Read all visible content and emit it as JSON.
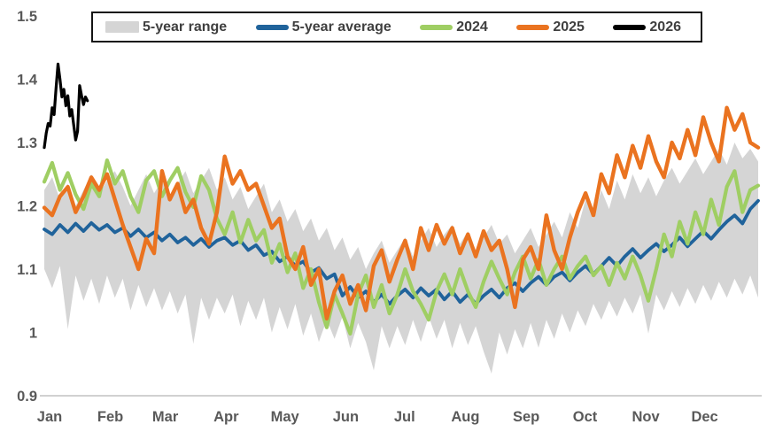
{
  "chart_data": {
    "type": "line",
    "title": "",
    "xlabel": "",
    "ylabel": "",
    "grid": false,
    "legend_position": "top",
    "y_axis": {
      "range": [
        0.9,
        1.5
      ],
      "tick_labels": [
        "1.5",
        "1.4",
        "1.3",
        "1.2",
        "1.1",
        "1",
        "0.9"
      ],
      "tick_values": [
        1.5,
        1.4,
        1.3,
        1.2,
        1.1,
        1.0,
        0.9
      ]
    },
    "x_axis": {
      "tick_labels": [
        "Jan",
        "Feb",
        "Mar",
        "Apr",
        "May",
        "Jun",
        "Jul",
        "Aug",
        "Sep",
        "Oct",
        "Nov",
        "Dec"
      ],
      "tick_days": [
        1,
        32,
        60,
        91,
        121,
        152,
        182,
        213,
        244,
        274,
        305,
        335
      ],
      "domain_days": [
        1,
        365
      ]
    },
    "legend": {
      "items": [
        {
          "label": "5-year range",
          "color": "#D5D5D5",
          "swatch": "area"
        },
        {
          "label": "5-year average",
          "color": "#20639B",
          "swatch": "line"
        },
        {
          "label": "2024",
          "color": "#9FCE63",
          "swatch": "line"
        },
        {
          "label": "2025",
          "color": "#EA7320",
          "swatch": "line"
        },
        {
          "label": "2026",
          "color": "#000000",
          "swatch": "line"
        }
      ]
    },
    "days": [
      1,
      5,
      9,
      13,
      17,
      21,
      25,
      29,
      33,
      37,
      41,
      45,
      49,
      53,
      57,
      61,
      65,
      69,
      73,
      77,
      81,
      85,
      89,
      93,
      97,
      101,
      105,
      109,
      113,
      117,
      121,
      125,
      129,
      133,
      137,
      141,
      145,
      149,
      153,
      157,
      161,
      165,
      169,
      173,
      177,
      181,
      185,
      189,
      193,
      197,
      201,
      205,
      209,
      213,
      217,
      221,
      225,
      229,
      233,
      237,
      241,
      245,
      249,
      253,
      257,
      261,
      265,
      269,
      273,
      277,
      281,
      285,
      289,
      293,
      297,
      301,
      305,
      309,
      313,
      317,
      321,
      325,
      329,
      333,
      337,
      341,
      345,
      349,
      353,
      357,
      361,
      365
    ],
    "series": [
      {
        "name": "5-year range",
        "kind": "band",
        "color": "#D5D5D5",
        "high": [
          1.225,
          1.245,
          1.21,
          1.235,
          1.2,
          1.225,
          1.25,
          1.22,
          1.24,
          1.255,
          1.23,
          1.2,
          1.225,
          1.25,
          1.22,
          1.24,
          1.21,
          1.235,
          1.255,
          1.22,
          1.24,
          1.26,
          1.225,
          1.245,
          1.21,
          1.23,
          1.195,
          1.215,
          1.235,
          1.19,
          1.21,
          1.175,
          1.195,
          1.16,
          1.18,
          1.145,
          1.165,
          1.13,
          1.15,
          1.115,
          1.135,
          1.1,
          1.125,
          1.145,
          1.11,
          1.13,
          1.15,
          1.12,
          1.145,
          1.165,
          1.135,
          1.155,
          1.17,
          1.14,
          1.16,
          1.13,
          1.15,
          1.17,
          1.14,
          1.155,
          1.125,
          1.145,
          1.165,
          1.135,
          1.155,
          1.175,
          1.15,
          1.19,
          1.165,
          1.21,
          1.18,
          1.225,
          1.195,
          1.24,
          1.21,
          1.25,
          1.22,
          1.245,
          1.215,
          1.24,
          1.26,
          1.235,
          1.255,
          1.275,
          1.25,
          1.27,
          1.29,
          1.265,
          1.3,
          1.275,
          1.29,
          1.27
        ],
        "low": [
          1.1,
          1.07,
          1.105,
          1.005,
          1.09,
          1.05,
          1.085,
          1.045,
          1.09,
          1.055,
          1.085,
          1.035,
          1.075,
          1.04,
          1.07,
          1.035,
          1.065,
          1.03,
          1.06,
          0.982,
          1.055,
          1.02,
          1.055,
          1.03,
          1.06,
          1.01,
          1.05,
          1.02,
          1.055,
          1.0,
          1.04,
          1.005,
          1.045,
          0.995,
          1.03,
          0.985,
          1.02,
          0.99,
          1.025,
          0.975,
          1.015,
          0.985,
          0.94,
          1.01,
          0.975,
          1.01,
          0.98,
          1.02,
          0.985,
          1.025,
          0.99,
          1.02,
          0.975,
          1.015,
          0.98,
          1.01,
          0.97,
          0.935,
          1.0,
          0.965,
          1.005,
          0.975,
          1.015,
          0.976,
          1.02,
          0.99,
          1.03,
          1.0,
          1.035,
          1.01,
          1.045,
          1.02,
          1.05,
          1.025,
          1.055,
          1.03,
          1.06,
          0.998,
          1.06,
          1.035,
          1.065,
          1.04,
          1.07,
          1.045,
          1.075,
          1.05,
          1.08,
          1.055,
          1.085,
          1.06,
          1.09,
          1.055
        ]
      },
      {
        "name": "5-year average",
        "kind": "line",
        "color": "#20639B",
        "values": [
          1.163,
          1.155,
          1.17,
          1.158,
          1.172,
          1.16,
          1.173,
          1.162,
          1.17,
          1.158,
          1.165,
          1.152,
          1.163,
          1.15,
          1.158,
          1.145,
          1.155,
          1.142,
          1.15,
          1.138,
          1.148,
          1.135,
          1.145,
          1.15,
          1.138,
          1.145,
          1.13,
          1.138,
          1.122,
          1.128,
          1.112,
          1.12,
          1.105,
          1.112,
          1.095,
          1.102,
          1.085,
          1.092,
          1.058,
          1.072,
          1.055,
          1.065,
          1.048,
          1.06,
          1.045,
          1.058,
          1.068,
          1.055,
          1.07,
          1.058,
          1.068,
          1.052,
          1.065,
          1.048,
          1.06,
          1.045,
          1.058,
          1.068,
          1.055,
          1.07,
          1.078,
          1.065,
          1.078,
          1.088,
          1.075,
          1.088,
          1.095,
          1.082,
          1.095,
          1.105,
          1.092,
          1.105,
          1.118,
          1.105,
          1.12,
          1.132,
          1.118,
          1.13,
          1.14,
          1.128,
          1.138,
          1.15,
          1.136,
          1.148,
          1.16,
          1.148,
          1.162,
          1.175,
          1.185,
          1.172,
          1.195,
          1.208
        ]
      },
      {
        "name": "2024",
        "kind": "line",
        "color": "#9FCE63",
        "values": [
          1.238,
          1.268,
          1.225,
          1.252,
          1.218,
          1.195,
          1.235,
          1.215,
          1.272,
          1.235,
          1.255,
          1.215,
          1.19,
          1.24,
          1.255,
          1.215,
          1.24,
          1.26,
          1.222,
          1.198,
          1.247,
          1.225,
          1.18,
          1.155,
          1.19,
          1.142,
          1.178,
          1.145,
          1.162,
          1.11,
          1.14,
          1.095,
          1.125,
          1.07,
          1.1,
          1.048,
          1.008,
          1.06,
          1.03,
          0.998,
          1.06,
          1.09,
          1.04,
          1.075,
          1.03,
          1.06,
          1.1,
          1.065,
          1.045,
          1.02,
          1.065,
          1.092,
          1.06,
          1.1,
          1.065,
          1.04,
          1.08,
          1.112,
          1.085,
          1.06,
          1.095,
          1.12,
          1.085,
          1.115,
          1.075,
          1.1,
          1.12,
          1.085,
          1.105,
          1.12,
          1.09,
          1.105,
          1.075,
          1.11,
          1.085,
          1.12,
          1.09,
          1.05,
          1.1,
          1.155,
          1.12,
          1.175,
          1.14,
          1.19,
          1.155,
          1.21,
          1.17,
          1.23,
          1.255,
          1.19,
          1.225,
          1.232
        ]
      },
      {
        "name": "2025",
        "kind": "line",
        "color": "#EA7320",
        "values": [
          1.197,
          1.185,
          1.215,
          1.23,
          1.19,
          1.215,
          1.245,
          1.225,
          1.25,
          1.21,
          1.17,
          1.135,
          1.1,
          1.148,
          1.125,
          1.255,
          1.21,
          1.235,
          1.19,
          1.21,
          1.165,
          1.14,
          1.19,
          1.278,
          1.235,
          1.255,
          1.225,
          1.235,
          1.2,
          1.165,
          1.18,
          1.12,
          1.1,
          1.135,
          1.075,
          1.1,
          1.022,
          1.065,
          1.09,
          1.045,
          1.075,
          1.035,
          1.105,
          1.13,
          1.08,
          1.115,
          1.145,
          1.1,
          1.165,
          1.13,
          1.17,
          1.14,
          1.165,
          1.125,
          1.155,
          1.12,
          1.16,
          1.13,
          1.145,
          1.1,
          1.04,
          1.115,
          1.135,
          1.1,
          1.185,
          1.13,
          1.1,
          1.15,
          1.19,
          1.22,
          1.185,
          1.25,
          1.22,
          1.28,
          1.245,
          1.295,
          1.26,
          1.31,
          1.27,
          1.245,
          1.3,
          1.275,
          1.32,
          1.28,
          1.34,
          1.3,
          1.27,
          1.355,
          1.32,
          1.345,
          1.3,
          1.292
        ]
      },
      {
        "name": "2026",
        "kind": "line",
        "color": "#000000",
        "days": [
          1,
          2,
          3,
          4,
          5,
          6,
          7,
          8,
          9,
          10,
          11,
          12,
          13,
          14,
          15,
          16,
          17,
          18,
          19,
          20,
          21,
          22,
          23
        ],
        "values": [
          1.292,
          1.315,
          1.33,
          1.326,
          1.355,
          1.344,
          1.386,
          1.424,
          1.4,
          1.372,
          1.384,
          1.358,
          1.374,
          1.342,
          1.352,
          1.328,
          1.304,
          1.318,
          1.39,
          1.374,
          1.36,
          1.372,
          1.366
        ]
      }
    ]
  }
}
